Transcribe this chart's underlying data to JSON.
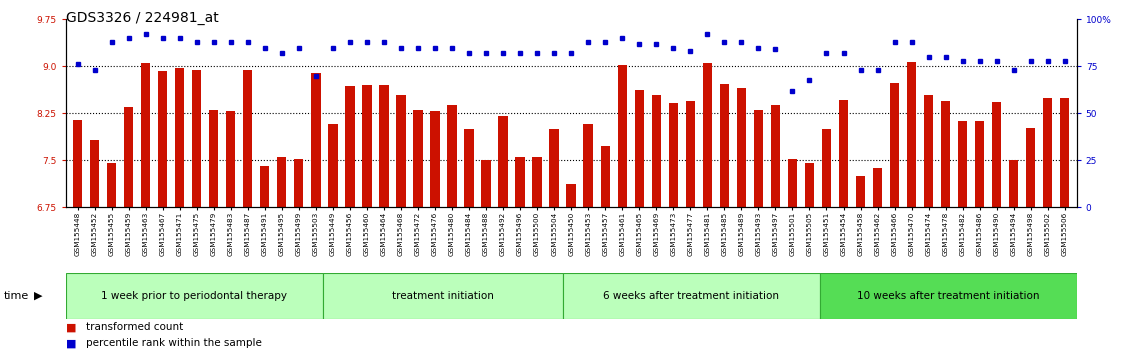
{
  "title": "GDS3326 / 224981_at",
  "samples": [
    "GSM155448",
    "GSM155452",
    "GSM155455",
    "GSM155459",
    "GSM155463",
    "GSM155467",
    "GSM155471",
    "GSM155475",
    "GSM155479",
    "GSM155483",
    "GSM155487",
    "GSM155491",
    "GSM155495",
    "GSM155499",
    "GSM155503",
    "GSM155449",
    "GSM155456",
    "GSM155460",
    "GSM155464",
    "GSM155468",
    "GSM155472",
    "GSM155476",
    "GSM155480",
    "GSM155484",
    "GSM155488",
    "GSM155492",
    "GSM155496",
    "GSM155500",
    "GSM155504",
    "GSM155450",
    "GSM155453",
    "GSM155457",
    "GSM155461",
    "GSM155465",
    "GSM155469",
    "GSM155473",
    "GSM155477",
    "GSM155481",
    "GSM155485",
    "GSM155489",
    "GSM155493",
    "GSM155497",
    "GSM155501",
    "GSM155505",
    "GSM155451",
    "GSM155454",
    "GSM155458",
    "GSM155462",
    "GSM155466",
    "GSM155470",
    "GSM155474",
    "GSM155478",
    "GSM155482",
    "GSM155486",
    "GSM155490",
    "GSM155494",
    "GSM155498",
    "GSM155502",
    "GSM155506"
  ],
  "bar_values": [
    8.15,
    7.82,
    7.45,
    8.35,
    9.05,
    8.92,
    8.97,
    8.95,
    8.3,
    8.28,
    8.95,
    7.4,
    7.55,
    7.52,
    8.9,
    8.08,
    8.68,
    8.7,
    8.7,
    8.55,
    8.3,
    8.28,
    8.38,
    8.0,
    7.5,
    8.2,
    7.55,
    7.55,
    8.0,
    7.12,
    8.08,
    7.72,
    9.02,
    8.62,
    8.55,
    8.42,
    8.45,
    9.05,
    8.72,
    8.65,
    8.3,
    8.38,
    7.52,
    7.45,
    8.0,
    8.47,
    7.25,
    7.37,
    8.73,
    9.07,
    8.55,
    8.45,
    8.13,
    8.13,
    8.43,
    7.5,
    8.02,
    8.5,
    8.5
  ],
  "percentile_values": [
    76,
    73,
    88,
    90,
    92,
    90,
    90,
    88,
    88,
    88,
    88,
    85,
    82,
    85,
    70,
    85,
    88,
    88,
    88,
    85,
    85,
    85,
    85,
    82,
    82,
    82,
    82,
    82,
    82,
    82,
    88,
    88,
    90,
    87,
    87,
    85,
    83,
    92,
    88,
    88,
    85,
    84,
    62,
    68,
    82,
    82,
    73,
    73,
    88,
    88,
    80,
    80,
    78,
    78,
    78,
    73,
    78,
    78,
    78
  ],
  "groups": [
    {
      "label": "1 week prior to periodontal therapy",
      "start": 0,
      "end": 15
    },
    {
      "label": "treatment initiation",
      "start": 15,
      "end": 29
    },
    {
      "label": "6 weeks after treatment initiation",
      "start": 29,
      "end": 44
    },
    {
      "label": "10 weeks after treatment initiation",
      "start": 44,
      "end": 59
    }
  ],
  "group_colors": [
    "#bbffbb",
    "#bbffbb",
    "#bbffbb",
    "#55dd55"
  ],
  "ylim_left": [
    6.75,
    9.75
  ],
  "ylim_right": [
    0,
    100
  ],
  "yticks_left": [
    6.75,
    7.5,
    8.25,
    9.0,
    9.75
  ],
  "yticks_right": [
    0,
    25,
    50,
    75,
    100
  ],
  "bar_color": "#cc1100",
  "dot_color": "#0000cc",
  "grid_lines": [
    7.5,
    8.25,
    9.0
  ],
  "background_color": "#ffffff",
  "title_fontsize": 10,
  "tick_fontsize": 6.5
}
